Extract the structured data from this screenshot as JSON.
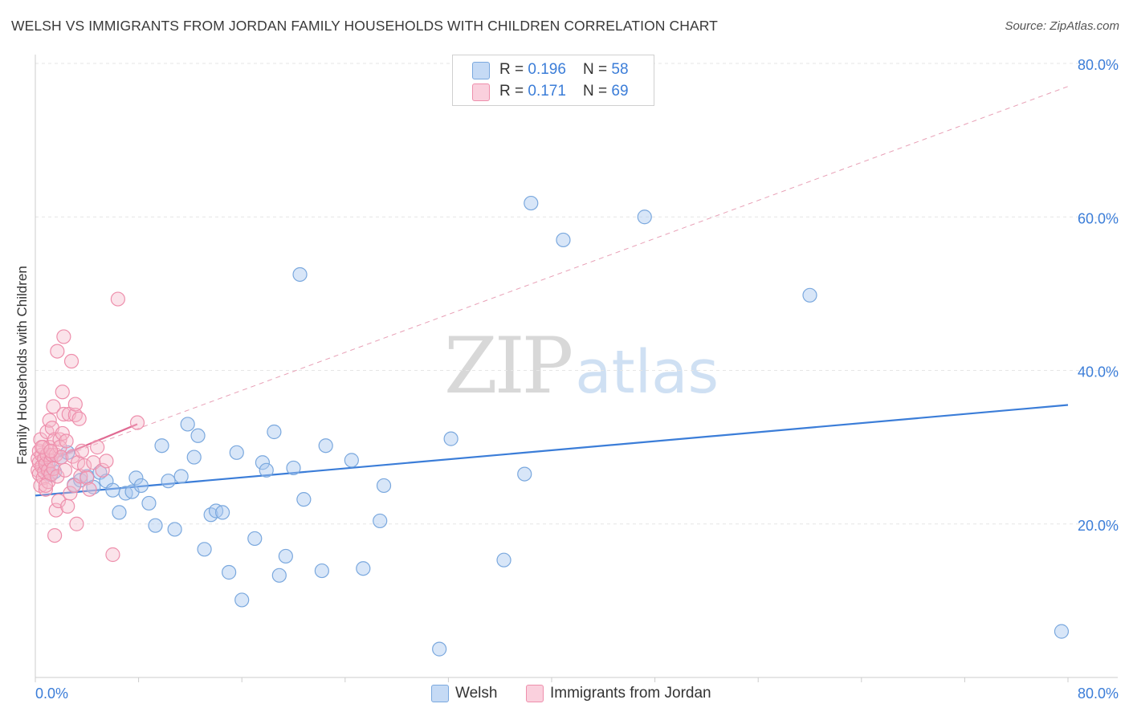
{
  "header": {
    "title": "WELSH VS IMMIGRANTS FROM JORDAN FAMILY HOUSEHOLDS WITH CHILDREN CORRELATION CHART",
    "source": "Source: ZipAtlas.com"
  },
  "watermark": {
    "zip": "ZIP",
    "atlas": "atlas"
  },
  "legend": {
    "rows": [
      {
        "r_label": "R = ",
        "r_value": "0.196",
        "n_label": "N = ",
        "n_value": "58",
        "color": "#a9c8f0"
      },
      {
        "r_label": "R = ",
        "r_value": " 0.171",
        "n_label": "N = ",
        "n_value": "69",
        "color": "#f6b8cb"
      }
    ],
    "bottom": [
      {
        "label": "Welsh",
        "color": "#a9c8f0"
      },
      {
        "label": "Immigrants from Jordan",
        "color": "#f6b8cb"
      }
    ]
  },
  "chart_data": {
    "type": "scatter",
    "ylabel": "Family Households with Children",
    "xlim": [
      0,
      0.8
    ],
    "ylim": [
      0,
      0.8
    ],
    "x_tick_labels": [
      "0.0%",
      "80.0%"
    ],
    "y_ticks": [
      0.2,
      0.4,
      0.6,
      0.8
    ],
    "y_tick_labels": [
      "20.0%",
      "40.0%",
      "60.0%",
      "80.0%"
    ],
    "grid": true,
    "series": [
      {
        "name": "Welsh",
        "color": "#a9c8f0",
        "stroke": "#7aa8de",
        "trend": {
          "x": [
            0.0,
            0.8
          ],
          "y": [
            0.237,
            0.355
          ],
          "color": "#3b7dd8",
          "style": "solid"
        },
        "points": [
          [
            0.009,
            0.27
          ],
          [
            0.012,
            0.264
          ],
          [
            0.015,
            0.268
          ],
          [
            0.02,
            0.287
          ],
          [
            0.025,
            0.293
          ],
          [
            0.03,
            0.251
          ],
          [
            0.035,
            0.257
          ],
          [
            0.04,
            0.262
          ],
          [
            0.045,
            0.248
          ],
          [
            0.05,
            0.267
          ],
          [
            0.055,
            0.256
          ],
          [
            0.06,
            0.244
          ],
          [
            0.065,
            0.215
          ],
          [
            0.07,
            0.24
          ],
          [
            0.075,
            0.242
          ],
          [
            0.078,
            0.26
          ],
          [
            0.082,
            0.25
          ],
          [
            0.088,
            0.227
          ],
          [
            0.093,
            0.198
          ],
          [
            0.098,
            0.302
          ],
          [
            0.103,
            0.256
          ],
          [
            0.108,
            0.193
          ],
          [
            0.113,
            0.262
          ],
          [
            0.118,
            0.33
          ],
          [
            0.123,
            0.287
          ],
          [
            0.126,
            0.315
          ],
          [
            0.131,
            0.167
          ],
          [
            0.136,
            0.212
          ],
          [
            0.14,
            0.217
          ],
          [
            0.145,
            0.215
          ],
          [
            0.15,
            0.137
          ],
          [
            0.156,
            0.293
          ],
          [
            0.16,
            0.101
          ],
          [
            0.17,
            0.181
          ],
          [
            0.176,
            0.28
          ],
          [
            0.179,
            0.27
          ],
          [
            0.185,
            0.32
          ],
          [
            0.189,
            0.133
          ],
          [
            0.194,
            0.158
          ],
          [
            0.2,
            0.273
          ],
          [
            0.205,
            0.525
          ],
          [
            0.208,
            0.232
          ],
          [
            0.222,
            0.139
          ],
          [
            0.225,
            0.302
          ],
          [
            0.245,
            0.283
          ],
          [
            0.254,
            0.142
          ],
          [
            0.267,
            0.204
          ],
          [
            0.27,
            0.25
          ],
          [
            0.313,
            0.037
          ],
          [
            0.322,
            0.311
          ],
          [
            0.363,
            0.153
          ],
          [
            0.379,
            0.265
          ],
          [
            0.384,
            0.618
          ],
          [
            0.409,
            0.57
          ],
          [
            0.472,
            0.6
          ],
          [
            0.6,
            0.498
          ],
          [
            0.795,
            0.06
          ],
          [
            0.01,
            0.277
          ]
        ]
      },
      {
        "name": "Immigrants from Jordan",
        "color": "#f6b8cb",
        "stroke": "#ee8fac",
        "trend": {
          "x": [
            0.0,
            0.079
          ],
          "y": [
            0.275,
            0.33
          ],
          "color": "#e06b93",
          "style": "solid"
        },
        "trend_extended": {
          "x": [
            0.0,
            0.8
          ],
          "y": [
            0.275,
            0.77
          ],
          "color": "#e8a0b6",
          "style": "dashed"
        },
        "points": [
          [
            0.002,
            0.285
          ],
          [
            0.002,
            0.27
          ],
          [
            0.003,
            0.295
          ],
          [
            0.003,
            0.265
          ],
          [
            0.003,
            0.28
          ],
          [
            0.004,
            0.25
          ],
          [
            0.004,
            0.31
          ],
          [
            0.005,
            0.275
          ],
          [
            0.005,
            0.29
          ],
          [
            0.006,
            0.26
          ],
          [
            0.006,
            0.3
          ],
          [
            0.007,
            0.285
          ],
          [
            0.007,
            0.268
          ],
          [
            0.008,
            0.278
          ],
          [
            0.008,
            0.245
          ],
          [
            0.009,
            0.29
          ],
          [
            0.009,
            0.32
          ],
          [
            0.01,
            0.27
          ],
          [
            0.01,
            0.255
          ],
          [
            0.011,
            0.3
          ],
          [
            0.011,
            0.335
          ],
          [
            0.012,
            0.282
          ],
          [
            0.012,
            0.265
          ],
          [
            0.013,
            0.29
          ],
          [
            0.013,
            0.325
          ],
          [
            0.014,
            0.272
          ],
          [
            0.014,
            0.353
          ],
          [
            0.015,
            0.185
          ],
          [
            0.015,
            0.31
          ],
          [
            0.016,
            0.218
          ],
          [
            0.016,
            0.29
          ],
          [
            0.017,
            0.425
          ],
          [
            0.017,
            0.262
          ],
          [
            0.018,
            0.23
          ],
          [
            0.019,
            0.31
          ],
          [
            0.019,
            0.3
          ],
          [
            0.02,
            0.287
          ],
          [
            0.021,
            0.372
          ],
          [
            0.021,
            0.318
          ],
          [
            0.022,
            0.444
          ],
          [
            0.022,
            0.343
          ],
          [
            0.023,
            0.27
          ],
          [
            0.024,
            0.308
          ],
          [
            0.025,
            0.223
          ],
          [
            0.026,
            0.343
          ],
          [
            0.027,
            0.24
          ],
          [
            0.028,
            0.412
          ],
          [
            0.029,
            0.288
          ],
          [
            0.03,
            0.25
          ],
          [
            0.031,
            0.342
          ],
          [
            0.031,
            0.356
          ],
          [
            0.032,
            0.2
          ],
          [
            0.033,
            0.28
          ],
          [
            0.034,
            0.337
          ],
          [
            0.035,
            0.262
          ],
          [
            0.036,
            0.295
          ],
          [
            0.038,
            0.276
          ],
          [
            0.04,
            0.26
          ],
          [
            0.042,
            0.245
          ],
          [
            0.045,
            0.28
          ],
          [
            0.048,
            0.3
          ],
          [
            0.052,
            0.27
          ],
          [
            0.055,
            0.282
          ],
          [
            0.06,
            0.16
          ],
          [
            0.064,
            0.493
          ],
          [
            0.079,
            0.332
          ],
          [
            0.005,
            0.3
          ],
          [
            0.008,
            0.25
          ],
          [
            0.012,
            0.295
          ]
        ]
      }
    ]
  }
}
